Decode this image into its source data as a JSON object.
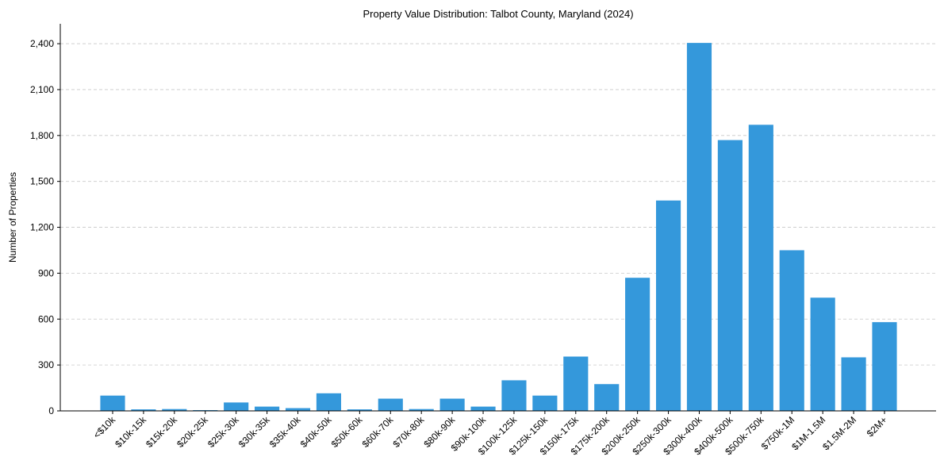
{
  "chart_data": {
    "type": "bar",
    "title": "Property Value Distribution: Talbot County, Maryland (2024)",
    "xlabel": "",
    "ylabel": "Number of Properties",
    "categories": [
      "<$10k",
      "$10k-15k",
      "$15k-20k",
      "$20k-25k",
      "$25k-30k",
      "$30k-35k",
      "$35k-40k",
      "$40k-50k",
      "$50k-60k",
      "$60k-70k",
      "$70k-80k",
      "$80k-90k",
      "$90k-100k",
      "$100k-125k",
      "$125k-150k",
      "$150k-175k",
      "$175k-200k",
      "$200k-250k",
      "$250k-300k",
      "$300k-400k",
      "$400k-500k",
      "$500k-750k",
      "$750k-1M",
      "$1M-1.5M",
      "$1.5M-2M",
      "$2M+"
    ],
    "values": [
      100,
      10,
      12,
      5,
      55,
      28,
      18,
      115,
      10,
      80,
      12,
      80,
      28,
      200,
      100,
      355,
      175,
      870,
      1375,
      2405,
      1770,
      1870,
      1050,
      740,
      350,
      580
    ],
    "ylim": [
      0,
      2530
    ],
    "yticks": [
      0,
      300,
      600,
      900,
      1200,
      1500,
      1800,
      2100,
      2400
    ],
    "ytick_labels": [
      "0",
      "300",
      "600",
      "900",
      "1,200",
      "1,500",
      "1,800",
      "2,100",
      "2,400"
    ],
    "grid": "y-dashed",
    "color": "#3498db"
  }
}
